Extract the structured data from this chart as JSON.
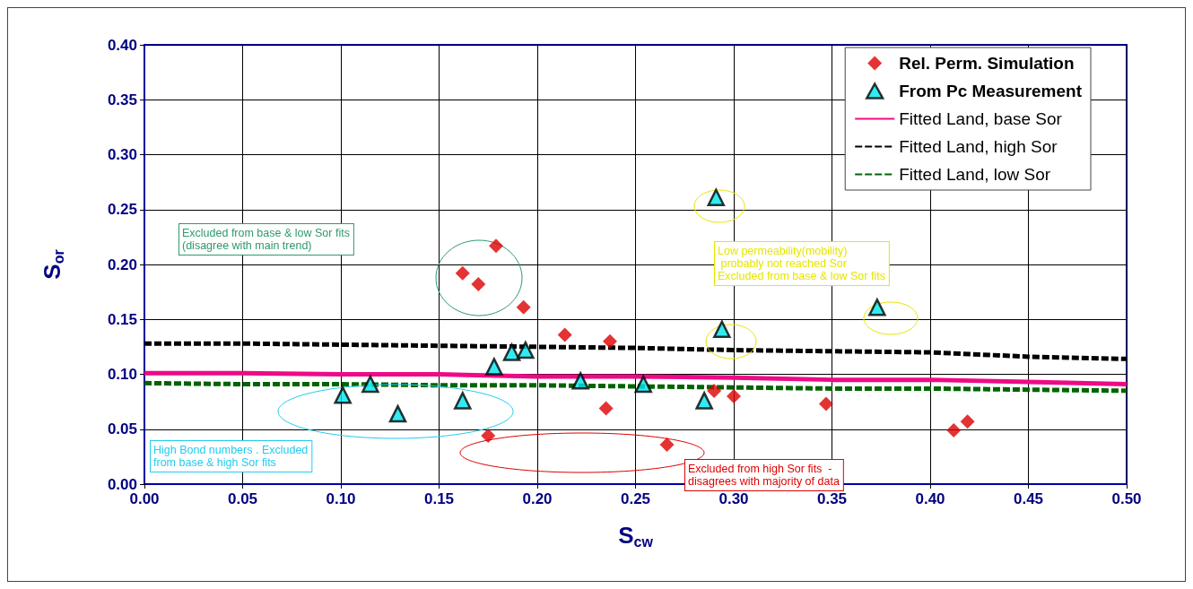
{
  "chart_data": {
    "type": "scatter",
    "xlabel": "S$_{cw}$",
    "ylabel": "S$_{or}$",
    "xlim": [
      0,
      0.5
    ],
    "ylim": [
      0,
      0.4
    ],
    "xticks": [
      {
        "value": 0,
        "label": "0.00"
      },
      {
        "value": 0.05,
        "label": "0.05"
      },
      {
        "value": 0.1,
        "label": "0.10"
      },
      {
        "value": 0.15,
        "label": "0.15"
      },
      {
        "value": 0.2,
        "label": "0.20"
      },
      {
        "value": 0.25,
        "label": "0.25"
      },
      {
        "value": 0.3,
        "label": "0.30"
      },
      {
        "value": 0.35,
        "label": "0.35"
      },
      {
        "value": 0.4,
        "label": "0.40"
      },
      {
        "value": 0.45,
        "label": "0.45"
      },
      {
        "value": 0.5,
        "label": "0.50"
      }
    ],
    "yticks": [
      {
        "value": 0,
        "label": "0.00"
      },
      {
        "value": 0.05,
        "label": "0.05"
      },
      {
        "value": 0.1,
        "label": "0.10"
      },
      {
        "value": 0.15,
        "label": "0.15"
      },
      {
        "value": 0.2,
        "label": "0.20"
      },
      {
        "value": 0.25,
        "label": "0.25"
      },
      {
        "value": 0.3,
        "label": "0.30"
      },
      {
        "value": 0.35,
        "label": "0.35"
      },
      {
        "value": 0.4,
        "label": "0.40"
      }
    ],
    "grid": true,
    "legend": "top right",
    "series": [
      {
        "name": "Rel. Perm. Simulation",
        "marker": "diamond",
        "color": "#dd0000",
        "x": [
          0.179,
          0.162,
          0.17,
          0.193,
          0.214,
          0.237,
          0.235,
          0.175,
          0.266,
          0.29,
          0.3,
          0.347,
          0.412,
          0.419
        ],
        "values": [
          0.217,
          0.192,
          0.182,
          0.161,
          0.136,
          0.13,
          0.069,
          0.044,
          0.036,
          0.085,
          0.08,
          0.073,
          0.049,
          0.057
        ]
      },
      {
        "name": "From Pc Measurement",
        "marker": "triangle",
        "color": "#00e5ee",
        "x": [
          0.101,
          0.115,
          0.129,
          0.162,
          0.178,
          0.187,
          0.194,
          0.222,
          0.254,
          0.285,
          0.294,
          0.291,
          0.373
        ],
        "values": [
          0.081,
          0.091,
          0.064,
          0.076,
          0.107,
          0.12,
          0.122,
          0.094,
          0.091,
          0.076,
          0.141,
          0.261,
          0.161
        ]
      },
      {
        "name": "Fitted Land, base Sor",
        "type": "line",
        "marker": "none",
        "line_style": "solid",
        "color": "#ee0a85",
        "x": [
          0,
          0.05,
          0.1,
          0.15,
          0.2,
          0.25,
          0.3,
          0.35,
          0.4,
          0.45,
          0.5
        ],
        "values": [
          0.101,
          0.101,
          0.1,
          0.1,
          0.098,
          0.098,
          0.097,
          0.095,
          0.095,
          0.093,
          0.091
        ]
      },
      {
        "name": "Fitted Land, high Sor",
        "type": "line",
        "marker": "none",
        "line_style": "dashed",
        "color": "#000000",
        "x": [
          0,
          0.05,
          0.1,
          0.15,
          0.2,
          0.25,
          0.3,
          0.35,
          0.4,
          0.45,
          0.5
        ],
        "values": [
          0.128,
          0.128,
          0.127,
          0.126,
          0.125,
          0.124,
          0.122,
          0.121,
          0.12,
          0.116,
          0.114
        ]
      },
      {
        "name": "Fitted Land, low Sor",
        "type": "line",
        "marker": "none",
        "line_style": "dashed",
        "color": "#006400",
        "x": [
          0,
          0.05,
          0.1,
          0.15,
          0.2,
          0.25,
          0.3,
          0.35,
          0.4,
          0.45,
          0.5
        ],
        "values": [
          0.092,
          0.091,
          0.091,
          0.09,
          0.09,
          0.089,
          0.088,
          0.087,
          0.087,
          0.086,
          0.085
        ]
      }
    ],
    "annotations": [
      "Excluded from base & low Sor fits\n(disagree with main trend)",
      "Low permeability(mobility)\n probably not reached Sor\nExcluded from base & low Sor fits",
      "High Bond numbers . Excluded\nfrom base & high Sor fits",
      "Excluded from high Sor fits  -\ndisagrees with majority of data"
    ]
  }
}
